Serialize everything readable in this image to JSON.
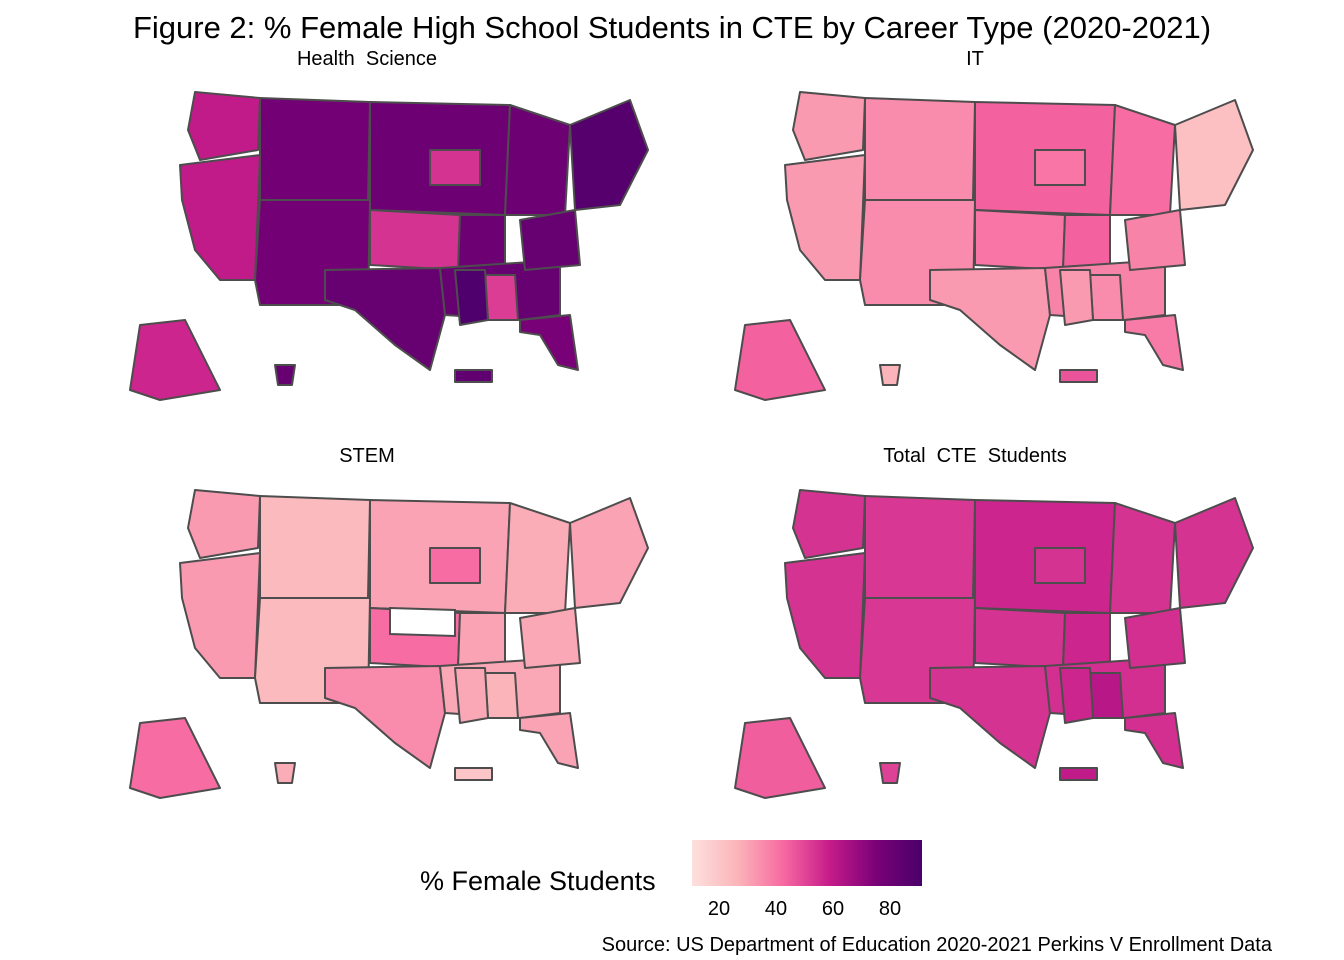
{
  "figure": {
    "title": "Figure 2: % Female High School Students in CTE by Career Type (2020-2021)",
    "source": "Source: US Department of Education 2020-2021 Perkins V Enrollment Data"
  },
  "legend": {
    "title": "% Female Students",
    "ticks": [
      "20",
      "40",
      "60",
      "80"
    ],
    "min": 8,
    "max": 90,
    "colors": [
      "#fde0dd",
      "#fbb4b9",
      "#f768a1",
      "#c51b8a",
      "#7a0177",
      "#49006a"
    ]
  },
  "panels": [
    {
      "title": "Health  Science",
      "regions": {
        "west_coast": 58,
        "mountain": 76,
        "plains": 78,
        "texas": 80,
        "iowa_kansas": 52,
        "midwest": 78,
        "south": 80,
        "alabama": 50,
        "mississippi": 88,
        "northeast": 86,
        "florida": 74,
        "alaska": 55,
        "hawaii": 80,
        "pr": 82
      }
    },
    {
      "title": "IT",
      "regions": {
        "west_coast": 30,
        "mountain": 33,
        "plains": 42,
        "texas": 30,
        "iowa_kansas": 38,
        "midwest": 40,
        "south": 35,
        "alabama": 33,
        "mississippi": 30,
        "northeast": 20,
        "florida": 37,
        "alaska": 42,
        "hawaii": 24,
        "pr": 45
      }
    },
    {
      "title": "STEM",
      "regions": {
        "west_coast": 30,
        "mountain": 22,
        "plains": 28,
        "texas": 33,
        "iowa_kansas": 40,
        "midwest": 26,
        "south": 27,
        "alabama": 24,
        "mississippi": 27,
        "northeast": 28,
        "florida": 28,
        "alaska": 40,
        "hawaii": 26,
        "pr": 18
      }
    },
    {
      "title": "Total  CTE  Students",
      "regions": {
        "west_coast": 52,
        "mountain": 51,
        "plains": 55,
        "texas": 52,
        "iowa_kansas": 52,
        "midwest": 52,
        "south": 53,
        "alabama": 60,
        "mississippi": 55,
        "northeast": 52,
        "florida": 53,
        "alaska": 43,
        "hawaii": 49,
        "pr": 58
      }
    }
  ]
}
